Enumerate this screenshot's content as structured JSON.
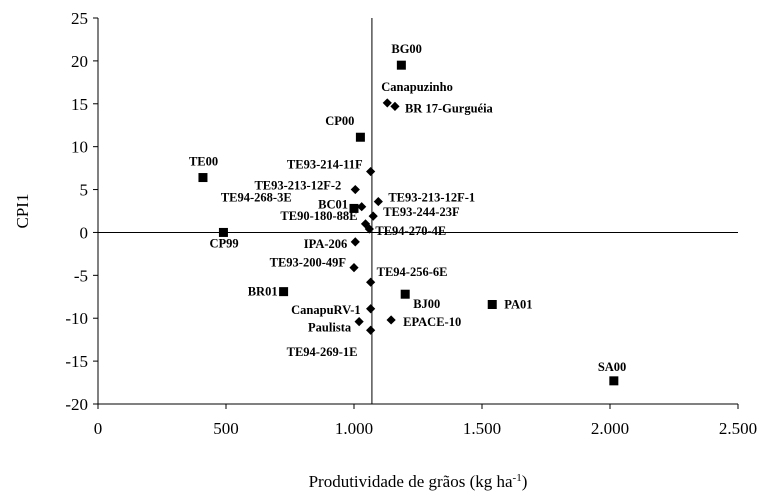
{
  "chart_data": {
    "type": "scatter",
    "xlabel": "Produtividade de grãos (kg ha",
    "xlabel_sup": "-1",
    "xlabel_close": ")",
    "ylabel": "CPI1",
    "xlim": [
      0,
      2500
    ],
    "ylim": [
      -20,
      25
    ],
    "x_ticks": [
      0,
      500,
      1000,
      1500,
      2000,
      2500
    ],
    "x_tick_labels": [
      "0",
      "500",
      "1.000",
      "1.500",
      "2.000",
      "2.500"
    ],
    "y_ticks": [
      -20,
      -15,
      -10,
      -5,
      0,
      5,
      10,
      15,
      20,
      25
    ],
    "y_tick_labels": [
      "-20",
      "-15",
      "-10",
      "-5",
      "0",
      "5",
      "10",
      "15",
      "20",
      "25"
    ],
    "reference_lines": {
      "x": 1070,
      "y": 0
    },
    "grid": false,
    "series": [
      {
        "marker": "square",
        "points": [
          {
            "label": "BG00",
            "x": 1185,
            "y": 19.5
          },
          {
            "label": "CP00",
            "x": 1025,
            "y": 11.1
          },
          {
            "label": "TE00",
            "x": 410,
            "y": 6.4
          },
          {
            "label": "BC01",
            "x": 1000,
            "y": 2.8
          },
          {
            "label": "CP99",
            "x": 490,
            "y": 0.0
          },
          {
            "label": "BR01",
            "x": 725,
            "y": -6.9
          },
          {
            "label": "BJ00",
            "x": 1200,
            "y": -7.2
          },
          {
            "label": "PA01",
            "x": 1540,
            "y": -8.4
          },
          {
            "label": "SA00",
            "x": 2015,
            "y": -17.3
          }
        ]
      },
      {
        "marker": "diamond",
        "points": [
          {
            "label": "Canapuzinho",
            "x": 1130,
            "y": 15.1
          },
          {
            "label": "BR 17-Gurguéia",
            "x": 1160,
            "y": 14.7
          },
          {
            "label": "TE93-214-11F",
            "x": 1065,
            "y": 7.1
          },
          {
            "label": "TE93-213-12F-2",
            "x": 1005,
            "y": 5.0
          },
          {
            "label": "TE93-213-12F-1",
            "x": 1095,
            "y": 3.6
          },
          {
            "label": "TE94-268-3E",
            "x": 1030,
            "y": 3.0
          },
          {
            "label": "TE93-244-23F",
            "x": 1075,
            "y": 1.9
          },
          {
            "label": "TE90-180-88E",
            "x": 1045,
            "y": 1.0
          },
          {
            "label": "TE94-270-4E",
            "x": 1060,
            "y": 0.4
          },
          {
            "label": "IPA-206",
            "x": 1005,
            "y": -1.1
          },
          {
            "label": "TE93-200-49F",
            "x": 1000,
            "y": -4.1
          },
          {
            "label": "TE94-256-6E",
            "x": 1065,
            "y": -5.8
          },
          {
            "label": "CanapuRV-1",
            "x": 1065,
            "y": -8.9
          },
          {
            "label": "EPACE-10",
            "x": 1145,
            "y": -10.2
          },
          {
            "label": "Paulista",
            "x": 1020,
            "y": -10.4
          },
          {
            "label": "TE94-269-1E",
            "x": 1065,
            "y": -11.4
          }
        ]
      }
    ]
  }
}
